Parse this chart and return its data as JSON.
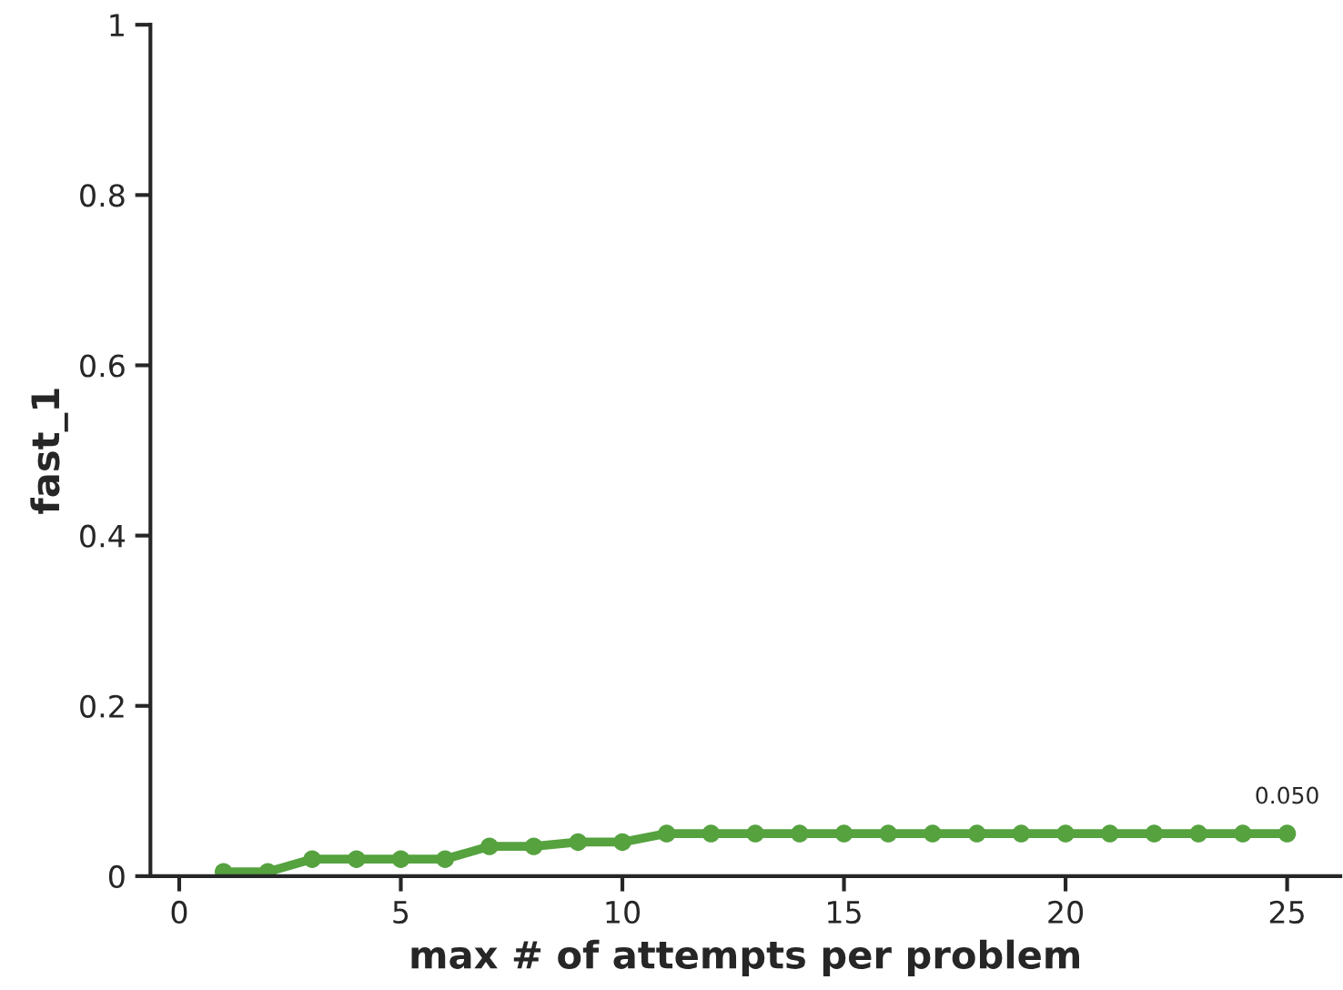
{
  "chart_data": {
    "type": "line",
    "xlabel": "max # of attempts per problem",
    "ylabel": "fast_1",
    "x": [
      1,
      2,
      3,
      4,
      5,
      6,
      7,
      8,
      9,
      10,
      11,
      12,
      13,
      14,
      15,
      16,
      17,
      18,
      19,
      20,
      21,
      22,
      23,
      24,
      25
    ],
    "series": [
      {
        "color": "#55a23f",
        "values": [
          0.005,
          0.005,
          0.02,
          0.02,
          0.02,
          0.02,
          0.035,
          0.035,
          0.04,
          0.04,
          0.05,
          0.05,
          0.05,
          0.05,
          0.05,
          0.05,
          0.05,
          0.05,
          0.05,
          0.05,
          0.05,
          0.05,
          0.05,
          0.05,
          0.05
        ]
      }
    ],
    "annotations": [
      {
        "text": "0.050",
        "x": 25,
        "y": 0.05
      }
    ],
    "xlim": [
      -0.65,
      26.2
    ],
    "ylim": [
      0,
      1
    ],
    "xticks": [
      0,
      5,
      10,
      15,
      20,
      25
    ],
    "yticks": [
      0,
      0.2,
      0.4,
      0.6,
      0.8,
      1
    ],
    "marker": "circle",
    "line_style": "solid",
    "grid": false,
    "legend": false
  }
}
